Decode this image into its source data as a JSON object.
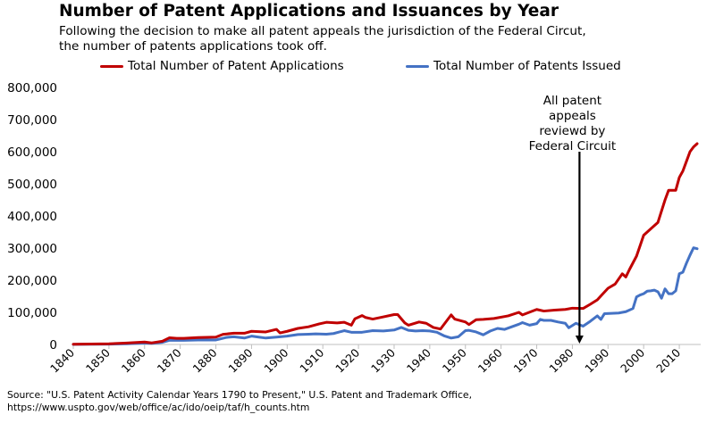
{
  "title": "Number of Patent Applications and Issuances by Year",
  "subtitle_lines": [
    "Following the decision to make all patent appeals the jurisdiction of the Federal Circut,",
    "the number of patents applications took off."
  ],
  "source_lines": [
    "Source: \"U.S. Patent Activity Calendar Years 1790 to Present,\" U.S. Patent and Trademark Office,",
    "https://www.uspto.gov/web/office/ac/ido/oeip/taf/h_counts.htm"
  ],
  "colors": {
    "applications": "#c00000",
    "issued": "#4472c4",
    "axis": "#bfbfbf",
    "arrow": "#000000"
  },
  "chart_data": {
    "type": "line",
    "title": "Number of Patent Applications and Issuances by Year",
    "xlabel": "",
    "ylabel": "",
    "xlim": [
      1840,
      2016
    ],
    "ylim": [
      0,
      800000
    ],
    "grid": false,
    "legend_position": "top",
    "x_ticks": [
      "1840",
      "1850",
      "1860",
      "1870",
      "1880",
      "1890",
      "1900",
      "1910",
      "1920",
      "1930",
      "1940",
      "1950",
      "1960",
      "1970",
      "1980",
      "1990",
      "2000",
      "2010"
    ],
    "y_ticks": [
      "0",
      "100,000",
      "200,000",
      "300,000",
      "400,000",
      "500,000",
      "600,000",
      "700,000",
      "800,000"
    ],
    "series": [
      {
        "name": "Total Number of Patent Applications",
        "color": "#c00000",
        "points": [
          [
            1840,
            700
          ],
          [
            1845,
            1300
          ],
          [
            1850,
            2200
          ],
          [
            1855,
            4400
          ],
          [
            1860,
            7600
          ],
          [
            1862,
            5000
          ],
          [
            1865,
            10000
          ],
          [
            1867,
            21000
          ],
          [
            1869,
            19000
          ],
          [
            1871,
            19200
          ],
          [
            1875,
            21600
          ],
          [
            1880,
            23000
          ],
          [
            1882,
            31500
          ],
          [
            1885,
            35000
          ],
          [
            1888,
            35000
          ],
          [
            1890,
            41000
          ],
          [
            1894,
            39000
          ],
          [
            1897,
            47000
          ],
          [
            1898,
            36000
          ],
          [
            1900,
            41000
          ],
          [
            1903,
            50000
          ],
          [
            1906,
            55000
          ],
          [
            1909,
            64000
          ],
          [
            1911,
            69000
          ],
          [
            1914,
            67000
          ],
          [
            1916,
            69000
          ],
          [
            1918,
            60000
          ],
          [
            1919,
            80000
          ],
          [
            1921,
            90000
          ],
          [
            1922,
            84000
          ],
          [
            1924,
            79000
          ],
          [
            1927,
            86000
          ],
          [
            1930,
            93000
          ],
          [
            1931,
            93000
          ],
          [
            1933,
            67000
          ],
          [
            1934,
            60000
          ],
          [
            1937,
            70000
          ],
          [
            1939,
            66000
          ],
          [
            1941,
            53000
          ],
          [
            1943,
            48000
          ],
          [
            1946,
            92000
          ],
          [
            1947,
            79000
          ],
          [
            1950,
            70000
          ],
          [
            1951,
            62000
          ],
          [
            1953,
            77000
          ],
          [
            1955,
            78000
          ],
          [
            1958,
            81000
          ],
          [
            1962,
            89000
          ],
          [
            1965,
            100000
          ],
          [
            1966,
            92000
          ],
          [
            1970,
            109000
          ],
          [
            1972,
            104000
          ],
          [
            1975,
            107000
          ],
          [
            1978,
            109000
          ],
          [
            1980,
            113000
          ],
          [
            1983,
            112000
          ],
          [
            1985,
            125000
          ],
          [
            1987,
            139000
          ],
          [
            1988,
            151000
          ],
          [
            1990,
            175000
          ],
          [
            1992,
            188000
          ],
          [
            1994,
            220000
          ],
          [
            1995,
            210000
          ],
          [
            1996,
            233000
          ],
          [
            1998,
            275000
          ],
          [
            2000,
            340000
          ],
          [
            2002,
            360000
          ],
          [
            2004,
            380000
          ],
          [
            2006,
            450000
          ],
          [
            2007,
            480000
          ],
          [
            2009,
            480000
          ],
          [
            2010,
            520000
          ],
          [
            2011,
            540000
          ],
          [
            2012,
            570000
          ],
          [
            2013,
            600000
          ],
          [
            2014,
            615000
          ],
          [
            2015,
            625000
          ]
        ]
      },
      {
        "name": "Total Number of Patents Issued",
        "color": "#4472c4",
        "points": [
          [
            1840,
            500
          ],
          [
            1845,
            600
          ],
          [
            1850,
            1000
          ],
          [
            1855,
            2000
          ],
          [
            1860,
            4500
          ],
          [
            1862,
            3500
          ],
          [
            1865,
            6600
          ],
          [
            1867,
            13000
          ],
          [
            1869,
            13000
          ],
          [
            1871,
            13000
          ],
          [
            1875,
            14000
          ],
          [
            1880,
            14000
          ],
          [
            1883,
            22000
          ],
          [
            1885,
            24000
          ],
          [
            1888,
            20000
          ],
          [
            1890,
            26000
          ],
          [
            1892,
            23000
          ],
          [
            1894,
            20000
          ],
          [
            1897,
            23000
          ],
          [
            1900,
            26000
          ],
          [
            1903,
            31000
          ],
          [
            1906,
            32000
          ],
          [
            1908,
            33000
          ],
          [
            1911,
            32000
          ],
          [
            1913,
            34000
          ],
          [
            1916,
            43000
          ],
          [
            1918,
            38000
          ],
          [
            1921,
            38000
          ],
          [
            1924,
            43000
          ],
          [
            1927,
            42000
          ],
          [
            1930,
            45000
          ],
          [
            1932,
            53000
          ],
          [
            1934,
            44000
          ],
          [
            1936,
            42000
          ],
          [
            1938,
            43000
          ],
          [
            1940,
            42000
          ],
          [
            1942,
            38000
          ],
          [
            1944,
            27000
          ],
          [
            1946,
            20000
          ],
          [
            1948,
            24000
          ],
          [
            1950,
            43000
          ],
          [
            1951,
            44000
          ],
          [
            1953,
            39000
          ],
          [
            1955,
            30000
          ],
          [
            1957,
            42000
          ],
          [
            1959,
            50000
          ],
          [
            1961,
            47000
          ],
          [
            1963,
            55000
          ],
          [
            1965,
            63000
          ],
          [
            1966,
            68000
          ],
          [
            1968,
            60000
          ],
          [
            1970,
            65000
          ],
          [
            1971,
            78000
          ],
          [
            1972,
            75000
          ],
          [
            1974,
            75000
          ],
          [
            1976,
            70000
          ],
          [
            1978,
            66000
          ],
          [
            1979,
            52000
          ],
          [
            1981,
            66000
          ],
          [
            1983,
            57000
          ],
          [
            1985,
            72000
          ],
          [
            1987,
            89000
          ],
          [
            1988,
            78000
          ],
          [
            1989,
            96000
          ],
          [
            1991,
            97000
          ],
          [
            1993,
            98000
          ],
          [
            1995,
            102000
          ],
          [
            1997,
            112000
          ],
          [
            1998,
            148000
          ],
          [
            1999,
            154000
          ],
          [
            2000,
            158000
          ],
          [
            2001,
            166000
          ],
          [
            2002,
            167000
          ],
          [
            2003,
            169000
          ],
          [
            2004,
            164000
          ],
          [
            2005,
            144000
          ],
          [
            2006,
            173000
          ],
          [
            2007,
            158000
          ],
          [
            2008,
            158000
          ],
          [
            2009,
            167000
          ],
          [
            2010,
            220000
          ],
          [
            2011,
            225000
          ],
          [
            2012,
            253000
          ],
          [
            2013,
            278000
          ],
          [
            2014,
            301000
          ],
          [
            2015,
            298000
          ]
        ]
      }
    ],
    "annotations": [
      {
        "lines": [
          "All patent",
          "appeals",
          "reviewd by",
          "Federal Circuit"
        ],
        "x": 1982,
        "arrow_from_y": 600000,
        "arrow_to_y": 0
      }
    ]
  }
}
